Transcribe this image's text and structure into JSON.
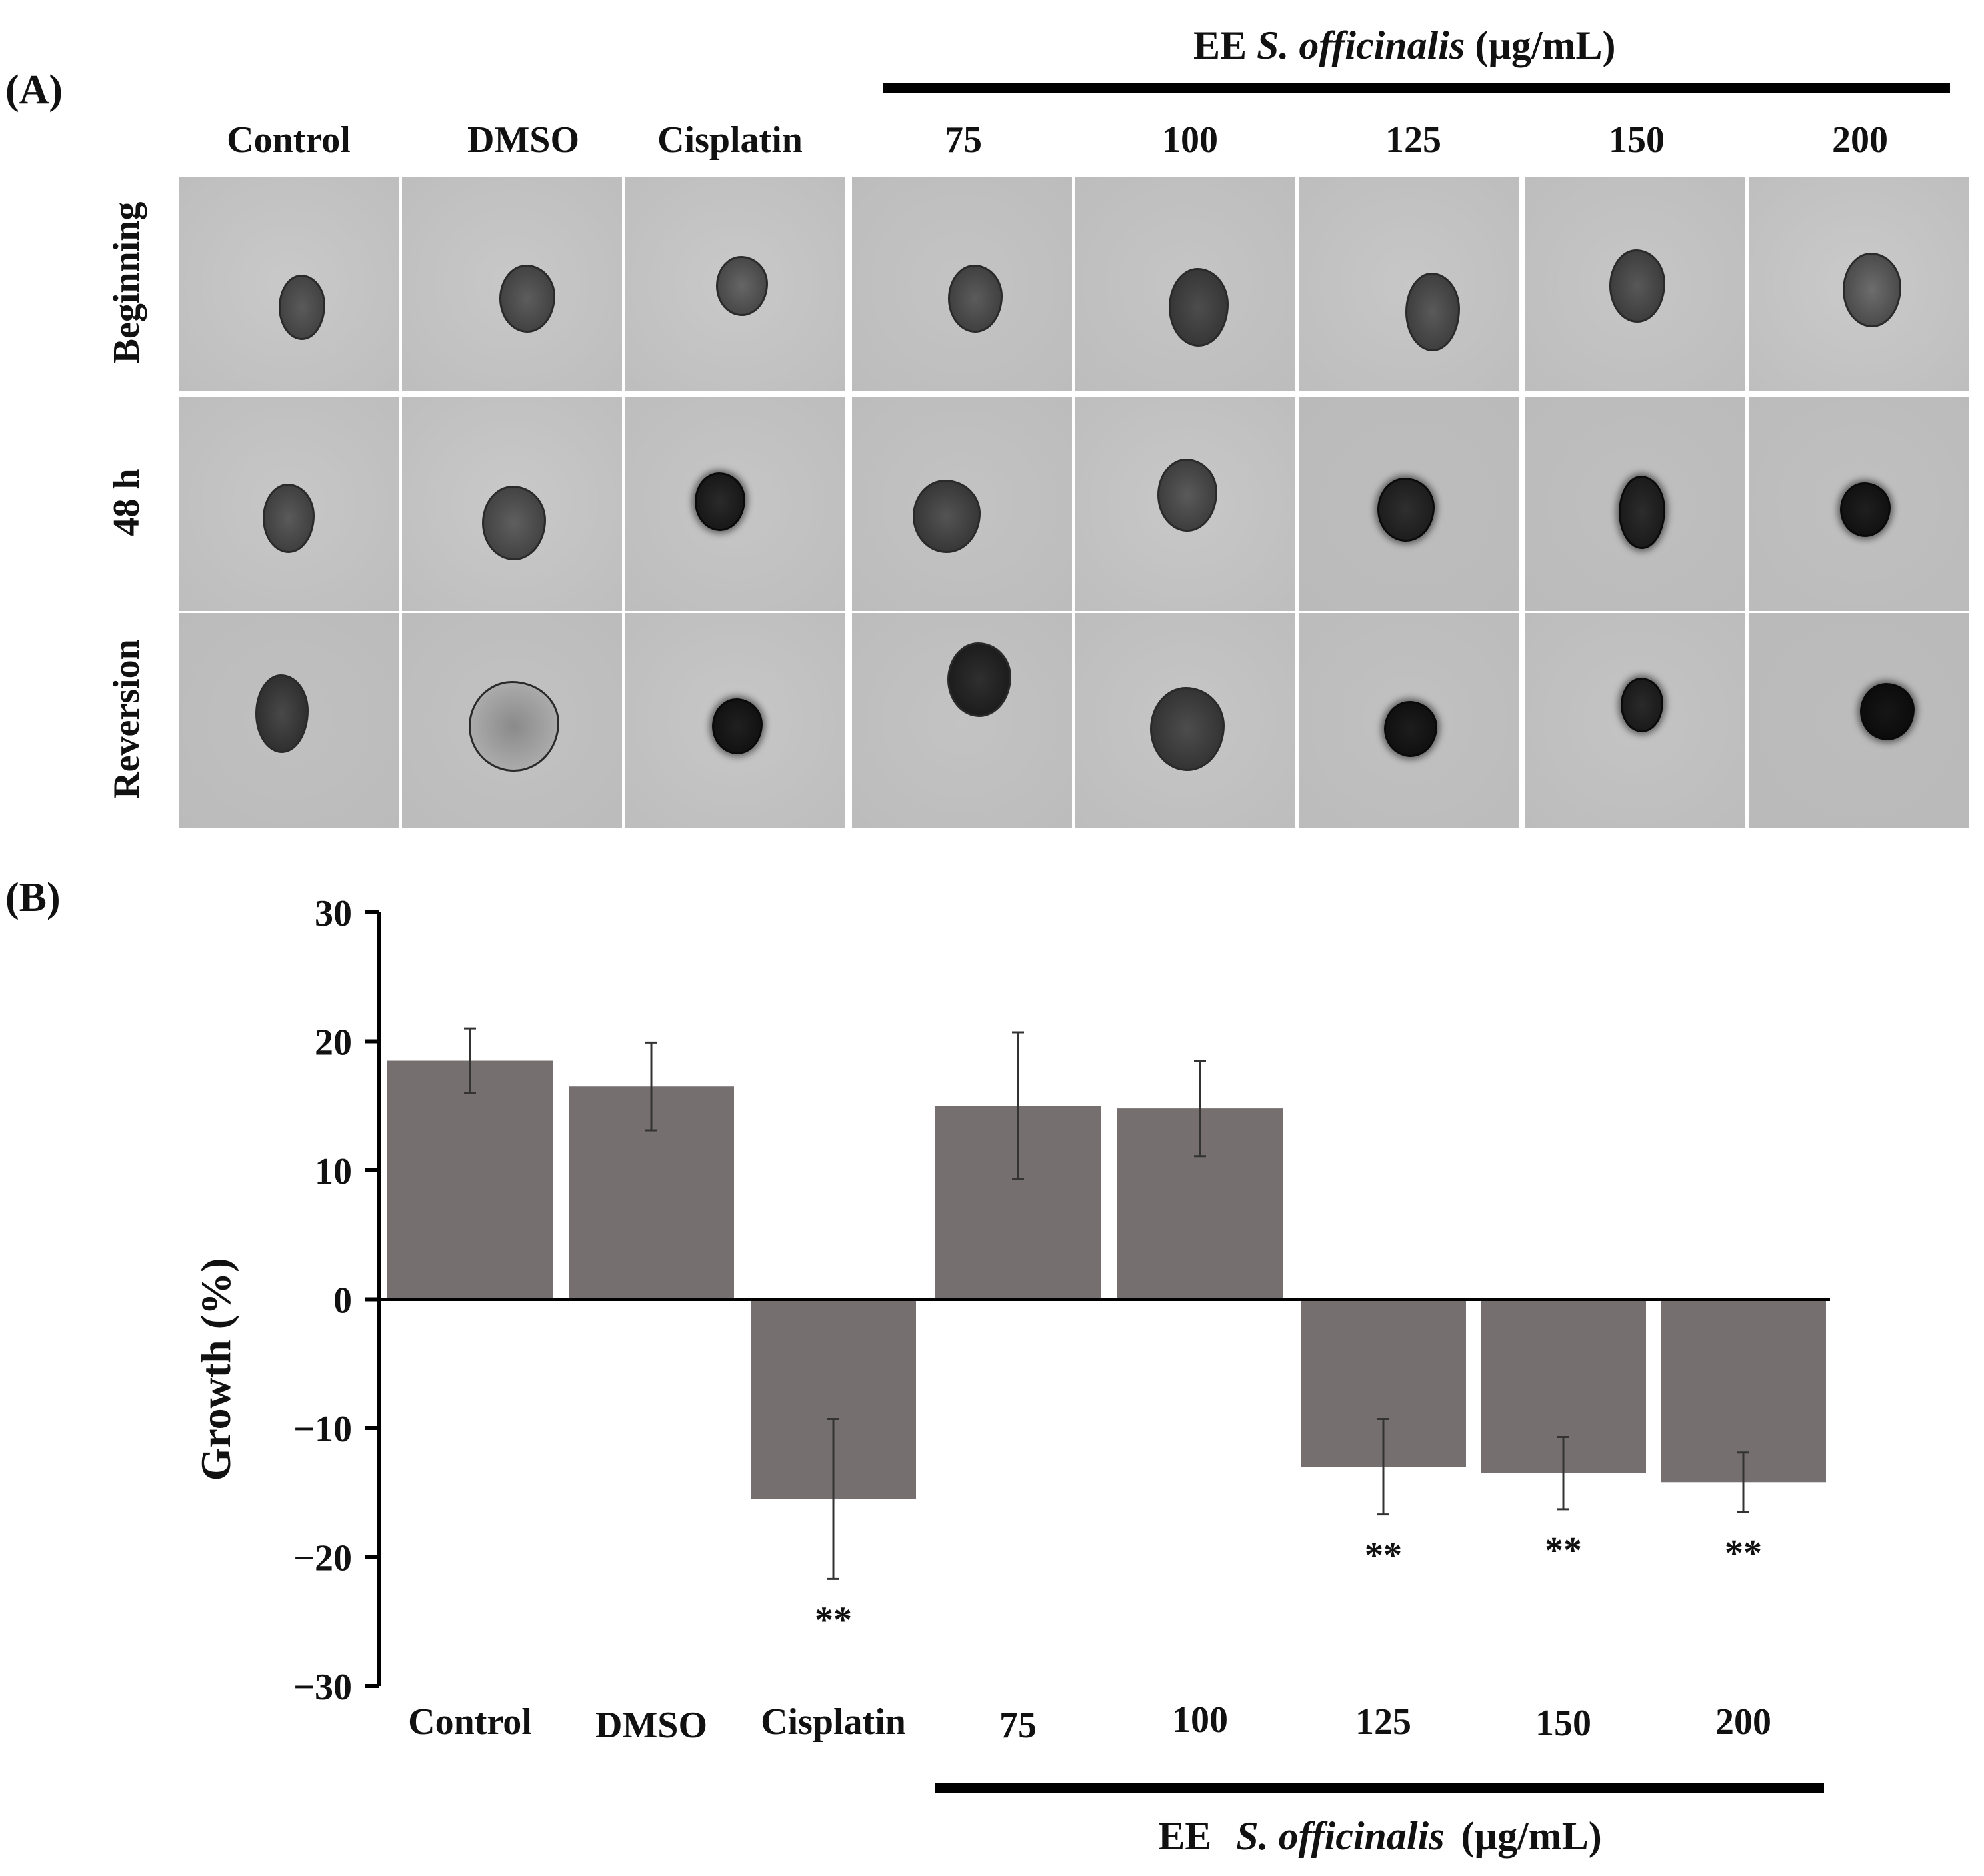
{
  "panel_a": {
    "label": "(A)",
    "group_title": {
      "prefix": "EE",
      "species": "S. officinalis",
      "unit": "(µg/mL)"
    },
    "columns": [
      "Control",
      "DMSO",
      "Cisplatin",
      "75",
      "100",
      "125",
      "150",
      "200"
    ],
    "rows": [
      "Beginning",
      "48 h",
      "Reversion"
    ]
  },
  "panel_b": {
    "label": "(B)"
  },
  "chart_data": {
    "type": "bar",
    "title": "",
    "xlabel": "",
    "ylabel": "Growth (%)",
    "ylim": [
      -30,
      30
    ],
    "yticks": [
      30,
      20,
      10,
      0,
      -10,
      -20,
      -30
    ],
    "ytick_labels": [
      "30",
      "20",
      "10",
      "0",
      "−10",
      "−20",
      "−30"
    ],
    "categories": [
      "Control",
      "DMSO",
      "Cisplatin",
      "75",
      "100",
      "125",
      "150",
      "200"
    ],
    "values": [
      18.5,
      16.5,
      -15.5,
      15.0,
      14.8,
      -13.0,
      -13.5,
      -14.2
    ],
    "error": [
      2.5,
      3.4,
      6.2,
      5.7,
      3.7,
      3.7,
      2.8,
      2.3
    ],
    "significance": [
      "",
      "",
      "**",
      "",
      "",
      "**",
      "**",
      "**"
    ],
    "bar_color": "#756f6f",
    "grid": false,
    "group_bracket": {
      "prefix": "EE",
      "species": "S. officinalis",
      "unit": "(µg/mL)",
      "spans": [
        "75",
        "100",
        "125",
        "150",
        "200"
      ]
    }
  }
}
